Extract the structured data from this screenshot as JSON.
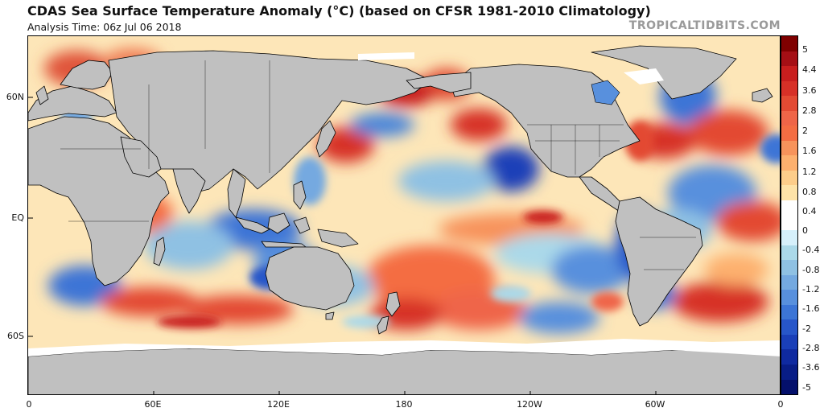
{
  "header": {
    "title": "CDAS Sea Surface Temperature Anomaly (°C) (based on CFSR 1981-2010 Climatology)",
    "subtitle": "Analysis Time: 06z Jul 06 2018",
    "brand": "TROPICALTIDBITS.COM"
  },
  "map": {
    "latitude_labels": [
      "60N",
      "EQ",
      "60S"
    ],
    "longitude_labels": [
      "0",
      "60E",
      "120E",
      "180",
      "120W",
      "60W",
      "0"
    ],
    "land_color": "#c0c0c0",
    "ice_color": "#ffffff",
    "coastline_color": "#000000"
  },
  "colorbar": {
    "unit": "°C",
    "labels": [
      "5",
      "4.4",
      "3.6",
      "2.8",
      "2",
      "1.6",
      "1.2",
      "0.8",
      "0.4",
      "0",
      "-0.4",
      "-0.8",
      "-1.2",
      "-1.6",
      "-2",
      "-2.8",
      "-3.6",
      "-5"
    ],
    "colors": [
      "#7f0000",
      "#a50f15",
      "#c81e1e",
      "#d73027",
      "#e34a33",
      "#ef6548",
      "#f46d43",
      "#f7935b",
      "#fdb06e",
      "#fdcd8a",
      "#fee3a8",
      "#ffffff",
      "#ffffff",
      "#d6f0fb",
      "#abd9e9",
      "#8fc1e3",
      "#74a9e0",
      "#5890dd",
      "#3c75d6",
      "#2756c9",
      "#1a3fb8",
      "#0f2aa0",
      "#081d86",
      "#04106b"
    ]
  }
}
